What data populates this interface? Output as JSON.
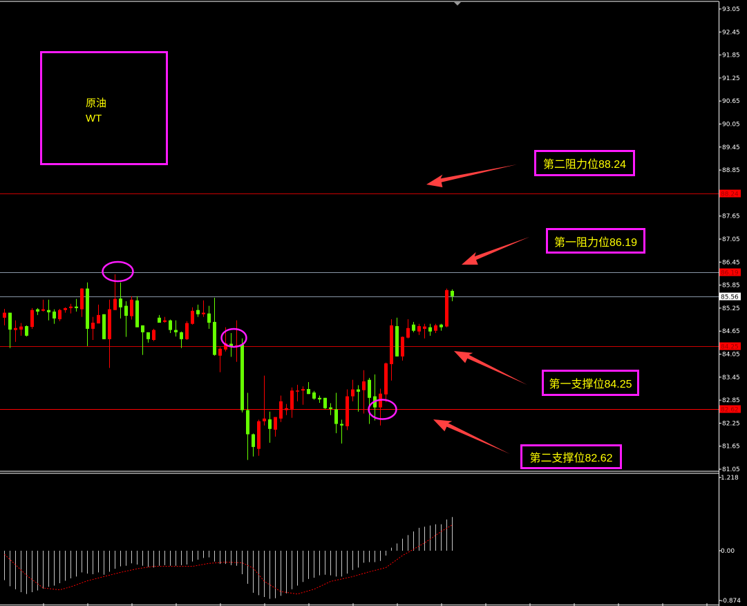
{
  "instrument": {
    "line1": "原油",
    "line2": "WT"
  },
  "annotations": {
    "resistance2": "第二阻力位88.24",
    "resistance1": "第一阻力位86.19",
    "support1": "第一支撑位84.25",
    "support2": "第二支撑位82.62"
  },
  "colors": {
    "background": "#000000",
    "bull_candle": "#ff0000",
    "bear_candle": "#66ff00",
    "annotation_border": "#ff1aff",
    "annotation_text": "#ffff00",
    "arrow": "#ff4040",
    "macd_hist": "#c8c8c8",
    "macd_signal": "#ff0000"
  },
  "chart_data": [
    {
      "type": "candlestick",
      "title": "",
      "ylim": [
        81.05,
        93.05
      ],
      "y_ticks": [
        "93.05",
        "92.45",
        "91.85",
        "91.25",
        "90.65",
        "90.05",
        "89.45",
        "88.85",
        "87.65",
        "87.05",
        "86.45",
        "85.85",
        "85.25",
        "84.65",
        "84.05",
        "83.45",
        "82.85",
        "82.25",
        "81.65",
        "81.05"
      ],
      "grid": false,
      "levels": [
        {
          "label": "88.24",
          "value": 88.24,
          "line_color": "#cc0000",
          "tag_color": "#ff0000"
        },
        {
          "label": "86.19",
          "value": 86.19,
          "line_color": "#8a97a8",
          "tag_color": "#ff0000"
        },
        {
          "label": "85.56",
          "value": 85.56,
          "line_color": "#8a97a8",
          "tag_color": "#ffffff",
          "current_price": true
        },
        {
          "label": "84.25",
          "value": 84.25,
          "line_color": "#cc0000",
          "tag_color": "#ff0000"
        },
        {
          "label": "82.62",
          "value": 82.62,
          "line_color": "#ff0000",
          "tag_color": "#ff0000"
        }
      ],
      "highlighted_candles": [
        20,
        42,
        67
      ],
      "ohlc": [
        [
          85.0,
          85.23,
          84.8,
          85.13
        ],
        [
          85.13,
          85.13,
          84.21,
          84.69
        ],
        [
          84.68,
          84.93,
          84.37,
          84.73
        ],
        [
          84.69,
          84.86,
          84.53,
          84.77
        ],
        [
          84.78,
          84.8,
          84.51,
          84.53
        ],
        [
          84.76,
          85.25,
          84.71,
          85.2
        ],
        [
          85.22,
          85.25,
          85.07,
          85.16
        ],
        [
          85.18,
          85.47,
          85.16,
          85.22
        ],
        [
          85.2,
          85.47,
          84.93,
          85.14
        ],
        [
          85.16,
          85.22,
          84.84,
          84.98
        ],
        [
          84.96,
          85.23,
          84.91,
          85.2
        ],
        [
          85.2,
          85.27,
          85.13,
          85.25
        ],
        [
          85.25,
          85.36,
          85.11,
          85.29
        ],
        [
          85.29,
          85.49,
          85.16,
          85.25
        ],
        [
          85.22,
          85.77,
          85.02,
          85.76
        ],
        [
          85.76,
          85.92,
          84.26,
          84.71
        ],
        [
          84.71,
          85.02,
          84.42,
          84.87
        ],
        [
          84.85,
          85.34,
          84.85,
          85.07
        ],
        [
          85.09,
          85.09,
          84.44,
          84.44
        ],
        [
          84.44,
          85.47,
          83.69,
          85.22
        ],
        [
          85.2,
          86.13,
          85.2,
          85.49
        ],
        [
          85.5,
          85.92,
          84.98,
          85.27
        ],
        [
          85.31,
          85.43,
          84.5,
          85.05
        ],
        [
          85.04,
          85.56,
          84.95,
          85.47
        ],
        [
          85.45,
          85.56,
          84.75,
          84.75
        ],
        [
          84.8,
          84.8,
          84.03,
          84.62
        ],
        [
          84.62,
          84.62,
          84.35,
          84.44
        ],
        [
          84.42,
          84.71,
          84.39,
          84.68
        ],
        [
          85.0,
          85.07,
          84.87,
          84.87
        ],
        [
          84.89,
          85.02,
          84.87,
          84.93
        ],
        [
          84.93,
          84.95,
          84.6,
          84.68
        ],
        [
          84.68,
          84.93,
          84.51,
          84.62
        ],
        [
          84.62,
          84.64,
          84.21,
          84.44
        ],
        [
          84.44,
          84.91,
          84.42,
          84.86
        ],
        [
          84.84,
          85.27,
          84.82,
          85.18
        ],
        [
          85.2,
          85.34,
          85.02,
          85.09
        ],
        [
          85.09,
          85.45,
          85.02,
          85.13
        ],
        [
          85.11,
          85.31,
          84.71,
          84.87
        ],
        [
          84.89,
          85.52,
          84.01,
          84.03
        ],
        [
          84.01,
          84.23,
          83.58,
          84.19
        ],
        [
          84.17,
          84.75,
          84.12,
          84.33
        ],
        [
          84.32,
          84.6,
          83.98,
          84.23
        ],
        [
          84.24,
          84.93,
          83.85,
          84.28
        ],
        [
          84.3,
          84.46,
          82.53,
          82.59
        ],
        [
          82.59,
          83.04,
          81.29,
          81.96
        ],
        [
          81.96,
          81.98,
          81.38,
          81.63
        ],
        [
          81.58,
          82.34,
          81.4,
          82.3
        ],
        [
          82.3,
          83.49,
          82.19,
          82.37
        ],
        [
          82.35,
          82.55,
          81.74,
          82.1
        ],
        [
          82.08,
          82.41,
          81.9,
          82.41
        ],
        [
          82.37,
          82.97,
          82.28,
          82.82
        ],
        [
          82.59,
          82.75,
          82.46,
          82.64
        ],
        [
          82.62,
          83.18,
          82.39,
          83.1
        ],
        [
          83.09,
          83.25,
          82.82,
          83.1
        ],
        [
          83.1,
          83.21,
          82.73,
          83.14
        ],
        [
          83.14,
          83.32,
          83.01,
          83.01
        ],
        [
          83.05,
          83.09,
          82.86,
          82.89
        ],
        [
          82.91,
          82.97,
          82.78,
          82.87
        ],
        [
          82.91,
          82.91,
          82.62,
          82.64
        ],
        [
          82.66,
          82.77,
          82.46,
          82.62
        ],
        [
          82.61,
          83.04,
          81.99,
          82.23
        ],
        [
          82.23,
          82.34,
          81.72,
          82.19
        ],
        [
          82.17,
          83.13,
          82.07,
          82.95
        ],
        [
          82.95,
          83.38,
          82.82,
          83.13
        ],
        [
          83.13,
          83.24,
          82.55,
          83.07
        ],
        [
          83.11,
          83.63,
          82.5,
          83.34
        ],
        [
          83.38,
          83.43,
          82.23,
          82.91
        ],
        [
          82.95,
          83.52,
          82.32,
          82.66
        ],
        [
          82.66,
          83.15,
          82.19,
          83.02
        ],
        [
          83.0,
          83.83,
          82.8,
          83.81
        ],
        [
          83.79,
          84.96,
          83.36,
          84.8
        ],
        [
          84.78,
          85.0,
          83.99,
          83.99
        ],
        [
          83.99,
          84.51,
          83.88,
          84.5
        ],
        [
          84.48,
          84.96,
          84.46,
          84.73
        ],
        [
          84.82,
          84.89,
          84.62,
          84.66
        ],
        [
          84.64,
          84.84,
          84.55,
          84.78
        ],
        [
          84.71,
          84.84,
          84.46,
          84.77
        ],
        [
          84.75,
          84.84,
          84.53,
          84.64
        ],
        [
          84.66,
          84.84,
          84.6,
          84.8
        ],
        [
          84.82,
          84.84,
          84.66,
          84.75
        ],
        [
          84.77,
          85.76,
          84.75,
          85.72
        ],
        [
          85.7,
          85.74,
          85.43,
          85.56
        ]
      ]
    },
    {
      "type": "bar+line",
      "title": "",
      "ylim": [
        -0.874,
        1.218
      ],
      "y_ticks": [
        "1.218",
        "0.00",
        "-0.874"
      ],
      "histogram": [
        -0.49,
        -0.59,
        -0.64,
        -0.69,
        -0.72,
        -0.69,
        -0.66,
        -0.63,
        -0.6,
        -0.58,
        -0.54,
        -0.5,
        -0.46,
        -0.43,
        -0.36,
        -0.38,
        -0.39,
        -0.36,
        -0.4,
        -0.35,
        -0.3,
        -0.26,
        -0.25,
        -0.21,
        -0.23,
        -0.25,
        -0.27,
        -0.28,
        -0.25,
        -0.24,
        -0.25,
        -0.25,
        -0.24,
        -0.23,
        -0.18,
        -0.15,
        -0.12,
        -0.11,
        -0.18,
        -0.22,
        -0.22,
        -0.24,
        -0.25,
        -0.39,
        -0.55,
        -0.7,
        -0.74,
        -0.77,
        -0.8,
        -0.79,
        -0.75,
        -0.71,
        -0.64,
        -0.58,
        -0.52,
        -0.47,
        -0.45,
        -0.41,
        -0.4,
        -0.41,
        -0.43,
        -0.43,
        -0.38,
        -0.32,
        -0.28,
        -0.2,
        -0.19,
        -0.19,
        -0.17,
        -0.08,
        0.05,
        0.12,
        0.2,
        0.26,
        0.32,
        0.38,
        0.4,
        0.42,
        0.44,
        0.44,
        0.52,
        0.56
      ],
      "signal_points": [
        [
          0,
          -0.06
        ],
        [
          4,
          -0.41
        ],
        [
          7,
          -0.62
        ],
        [
          10,
          -0.65
        ],
        [
          12,
          -0.6
        ],
        [
          15,
          -0.5
        ],
        [
          18,
          -0.43
        ],
        [
          21,
          -0.36
        ],
        [
          24,
          -0.3
        ],
        [
          27,
          -0.26
        ],
        [
          34,
          -0.26
        ],
        [
          37,
          -0.21
        ],
        [
          40,
          -0.19
        ],
        [
          43,
          -0.2
        ],
        [
          45,
          -0.29
        ],
        [
          47,
          -0.51
        ],
        [
          50,
          -0.68
        ],
        [
          53,
          -0.72
        ],
        [
          56,
          -0.64
        ],
        [
          59,
          -0.51
        ],
        [
          63,
          -0.43
        ],
        [
          66,
          -0.35
        ],
        [
          69,
          -0.28
        ],
        [
          72,
          -0.08
        ],
        [
          76,
          0.13
        ],
        [
          79,
          0.32
        ],
        [
          81,
          0.43
        ]
      ]
    }
  ]
}
